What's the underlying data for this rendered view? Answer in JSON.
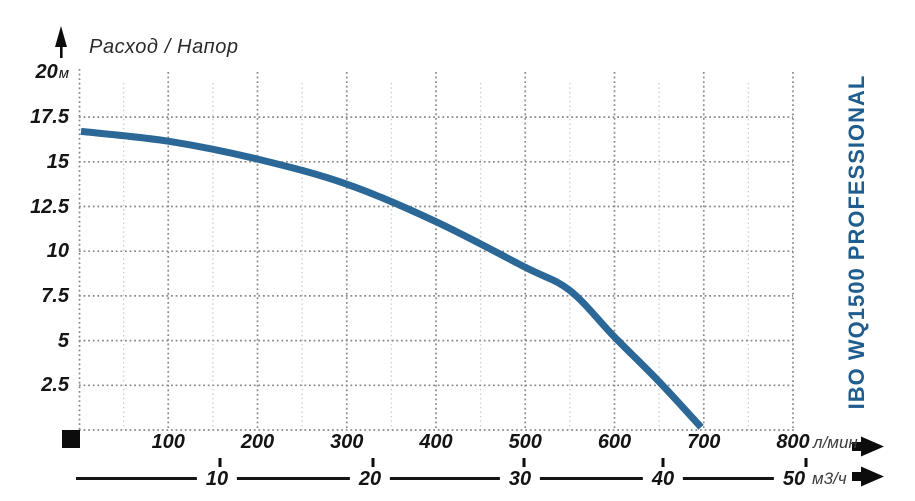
{
  "header": {
    "title": "Расход / Напор"
  },
  "brand": {
    "label": "IBO WQ1500 PROFESSIONAL",
    "color": "#1e5d8d"
  },
  "colors": {
    "curve": "#2b6897",
    "grid_major": "#8a8a8a",
    "grid_minor": "#c7c7c7",
    "label_text": "#141414",
    "marker": "#0c0c0c"
  },
  "y_axis": {
    "ticks": [
      20,
      17.5,
      15,
      12.5,
      10,
      7.5,
      5,
      2.5
    ],
    "unit": "м",
    "unit_on": 20
  },
  "x_axis_lpm": {
    "ticks": [
      100,
      200,
      300,
      400,
      500,
      600,
      700,
      800
    ],
    "unit": "л/мин"
  },
  "x_axis_m3h": {
    "ticks": [
      10,
      20,
      30,
      40,
      50
    ],
    "unit": "м3/ч"
  },
  "chart_data": {
    "type": "line",
    "title": "Расход / Напор",
    "xlabel": "л/мин",
    "x2label": "м3/ч",
    "ylabel": "м",
    "xlim": [
      0,
      800
    ],
    "ylim": [
      0,
      20
    ],
    "grid": true,
    "legend_position": "none",
    "x_ticks_lpm": [
      100,
      200,
      300,
      400,
      500,
      600,
      700,
      800
    ],
    "x_ticks_m3h": [
      10,
      20,
      30,
      40,
      50
    ],
    "y_ticks": [
      2.5,
      5,
      7.5,
      10,
      12.5,
      15,
      17.5,
      20
    ],
    "series": [
      {
        "name": "IBO WQ1500 PROFESSIONAL",
        "color": "#2b6897",
        "points_q_lpm_h_m": [
          [
            0,
            16.7
          ],
          [
            100,
            16.15
          ],
          [
            200,
            15.15
          ],
          [
            300,
            13.75
          ],
          [
            400,
            11.65
          ],
          [
            500,
            9.1
          ],
          [
            550,
            7.8
          ],
          [
            600,
            5.2
          ],
          [
            650,
            2.7
          ],
          [
            697,
            0.15
          ]
        ]
      }
    ]
  }
}
